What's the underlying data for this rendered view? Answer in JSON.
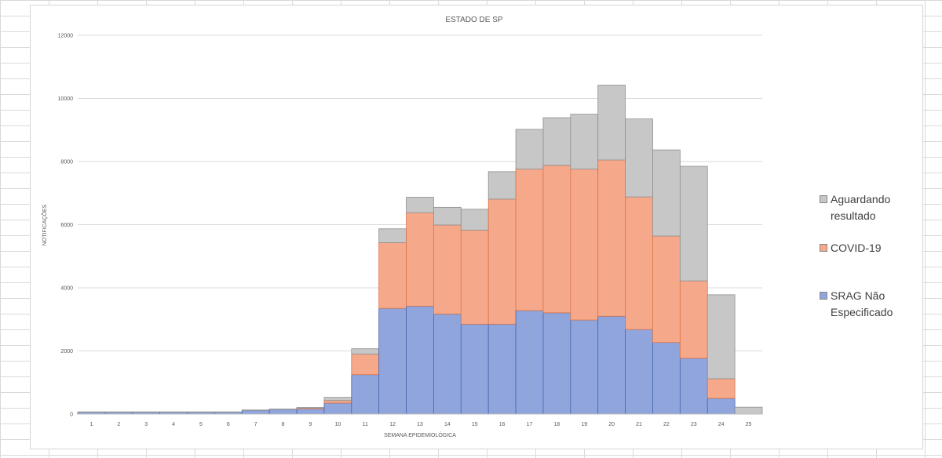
{
  "chart_data": {
    "type": "bar",
    "stacked": true,
    "title": "ESTADO DE SP",
    "xlabel": "SEMANA EPIDEMIOLÓGICA",
    "ylabel": "NOTIFICAÇÕES",
    "ylim": [
      0,
      12000
    ],
    "yticks": [
      "0",
      "2000",
      "4000",
      "6000",
      "8000",
      "10000",
      "12000"
    ],
    "grid": true,
    "legend_position": "right",
    "categories": [
      "1",
      "2",
      "3",
      "4",
      "5",
      "6",
      "7",
      "8",
      "9",
      "10",
      "11",
      "12",
      "13",
      "14",
      "15",
      "16",
      "17",
      "18",
      "19",
      "20",
      "21",
      "22",
      "23",
      "24",
      "25"
    ],
    "series": [
      {
        "name": "SRAG Não Especificado",
        "color": "#8fa5dc",
        "values": [
          60,
          60,
          60,
          60,
          60,
          60,
          120,
          150,
          170,
          350,
          1250,
          3350,
          3420,
          3170,
          2850,
          2850,
          3280,
          3210,
          2980,
          3100,
          2680,
          2270,
          1770,
          500,
          0
        ]
      },
      {
        "name": "COVID-19",
        "color": "#f6a98a",
        "values": [
          0,
          0,
          0,
          0,
          0,
          0,
          0,
          0,
          30,
          80,
          650,
          2080,
          2960,
          2820,
          2980,
          3960,
          4480,
          4670,
          4780,
          4950,
          4200,
          3370,
          2450,
          620,
          0
        ]
      },
      {
        "name": "Aguardando resultado",
        "color": "#c7c7c7",
        "values": [
          10,
          10,
          10,
          10,
          10,
          10,
          10,
          10,
          10,
          100,
          170,
          440,
          490,
          560,
          660,
          870,
          1260,
          1510,
          1740,
          2370,
          2470,
          2730,
          3630,
          2660,
          220
        ]
      }
    ]
  },
  "legend": {
    "items": [
      {
        "label": "Aguardando\nresultado",
        "color": "#c7c7c7"
      },
      {
        "label": "COVID-19",
        "color": "#f6a98a"
      },
      {
        "label": "SRAG Não\nEspecificado",
        "color": "#8fa5dc"
      }
    ]
  }
}
